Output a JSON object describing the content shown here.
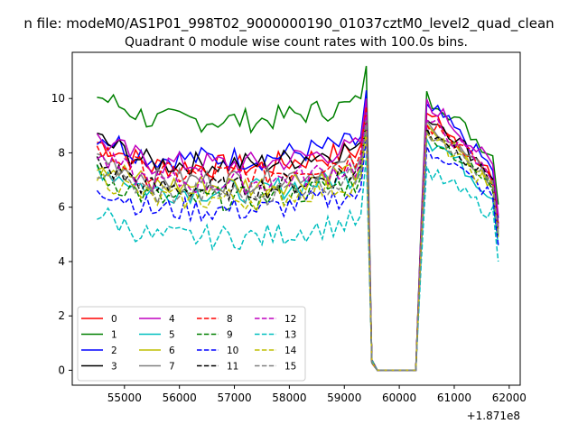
{
  "chart_data": {
    "type": "line",
    "suptitle": "n file: modeM0/AS1P01_998T02_9000000190_01037cztM0_level2_quad_clean",
    "title": "Quadrant 0 module wise count rates with 100.0s bins.",
    "xlabel": "",
    "ylabel": "",
    "x_offset_label": "+1.871e8",
    "xlim": [
      54050,
      62200
    ],
    "ylim": [
      -0.55,
      11.7
    ],
    "xticks": [
      "55000",
      "56000",
      "57000",
      "58000",
      "59000",
      "60000",
      "61000",
      "62000"
    ],
    "yticks": [
      "0",
      "2",
      "4",
      "6",
      "8",
      "10"
    ],
    "grid": false,
    "legend_position": "lower-left",
    "series": [
      {
        "name": "0",
        "color": "#ff0000",
        "dash": "solid",
        "pre": 7.5,
        "peak": 9.4,
        "post": 9.5,
        "end": 5.2
      },
      {
        "name": "1",
        "color": "#008000",
        "dash": "solid",
        "pre": 9.2,
        "peak": 11.2,
        "post": 10.1,
        "end": 6.1
      },
      {
        "name": "2",
        "color": "#0000ff",
        "dash": "solid",
        "pre": 7.8,
        "peak": 10.3,
        "post": 9.7,
        "end": 5.6
      },
      {
        "name": "3",
        "color": "#000000",
        "dash": "solid",
        "pre": 7.6,
        "peak": 9.7,
        "post": 9.4,
        "end": 5.4
      },
      {
        "name": "4",
        "color": "#bf00bf",
        "dash": "solid",
        "pre": 7.6,
        "peak": 10.0,
        "post": 9.8,
        "end": 5.7
      },
      {
        "name": "5",
        "color": "#00bfbf",
        "dash": "solid",
        "pre": 6.6,
        "peak": 9.0,
        "post": 8.6,
        "end": 4.6
      },
      {
        "name": "6",
        "color": "#bfbf00",
        "dash": "solid",
        "pre": 6.8,
        "peak": 9.2,
        "post": 8.9,
        "end": 5.0
      },
      {
        "name": "7",
        "color": "#808080",
        "dash": "solid",
        "pre": 7.0,
        "peak": 9.6,
        "post": 9.1,
        "end": 5.1
      },
      {
        "name": "8",
        "color": "#ff0000",
        "dash": "dashed",
        "pre": 7.2,
        "peak": 9.7,
        "post": 9.2,
        "end": 5.3
      },
      {
        "name": "9",
        "color": "#008000",
        "dash": "dashed",
        "pre": 6.3,
        "peak": 9.0,
        "post": 8.7,
        "end": 4.9
      },
      {
        "name": "10",
        "color": "#0000ff",
        "dash": "dashed",
        "pre": 5.9,
        "peak": 8.6,
        "post": 8.2,
        "end": 4.6
      },
      {
        "name": "11",
        "color": "#000000",
        "dash": "dashed",
        "pre": 6.7,
        "peak": 9.3,
        "post": 8.9,
        "end": 5.2
      },
      {
        "name": "12",
        "color": "#bf00bf",
        "dash": "dashed",
        "pre": 6.9,
        "peak": 9.5,
        "post": 9.2,
        "end": 5.3
      },
      {
        "name": "13",
        "color": "#00bfbf",
        "dash": "dashed",
        "pre": 4.9,
        "peak": 7.9,
        "post": 7.3,
        "end": 4.0
      },
      {
        "name": "14",
        "color": "#bfbf00",
        "dash": "dashed",
        "pre": 6.3,
        "peak": 8.8,
        "post": 8.6,
        "end": 4.9
      },
      {
        "name": "15",
        "color": "#808080",
        "dash": "dashed",
        "pre": 6.5,
        "peak": 9.2,
        "post": 8.9,
        "end": 5.0
      }
    ]
  }
}
